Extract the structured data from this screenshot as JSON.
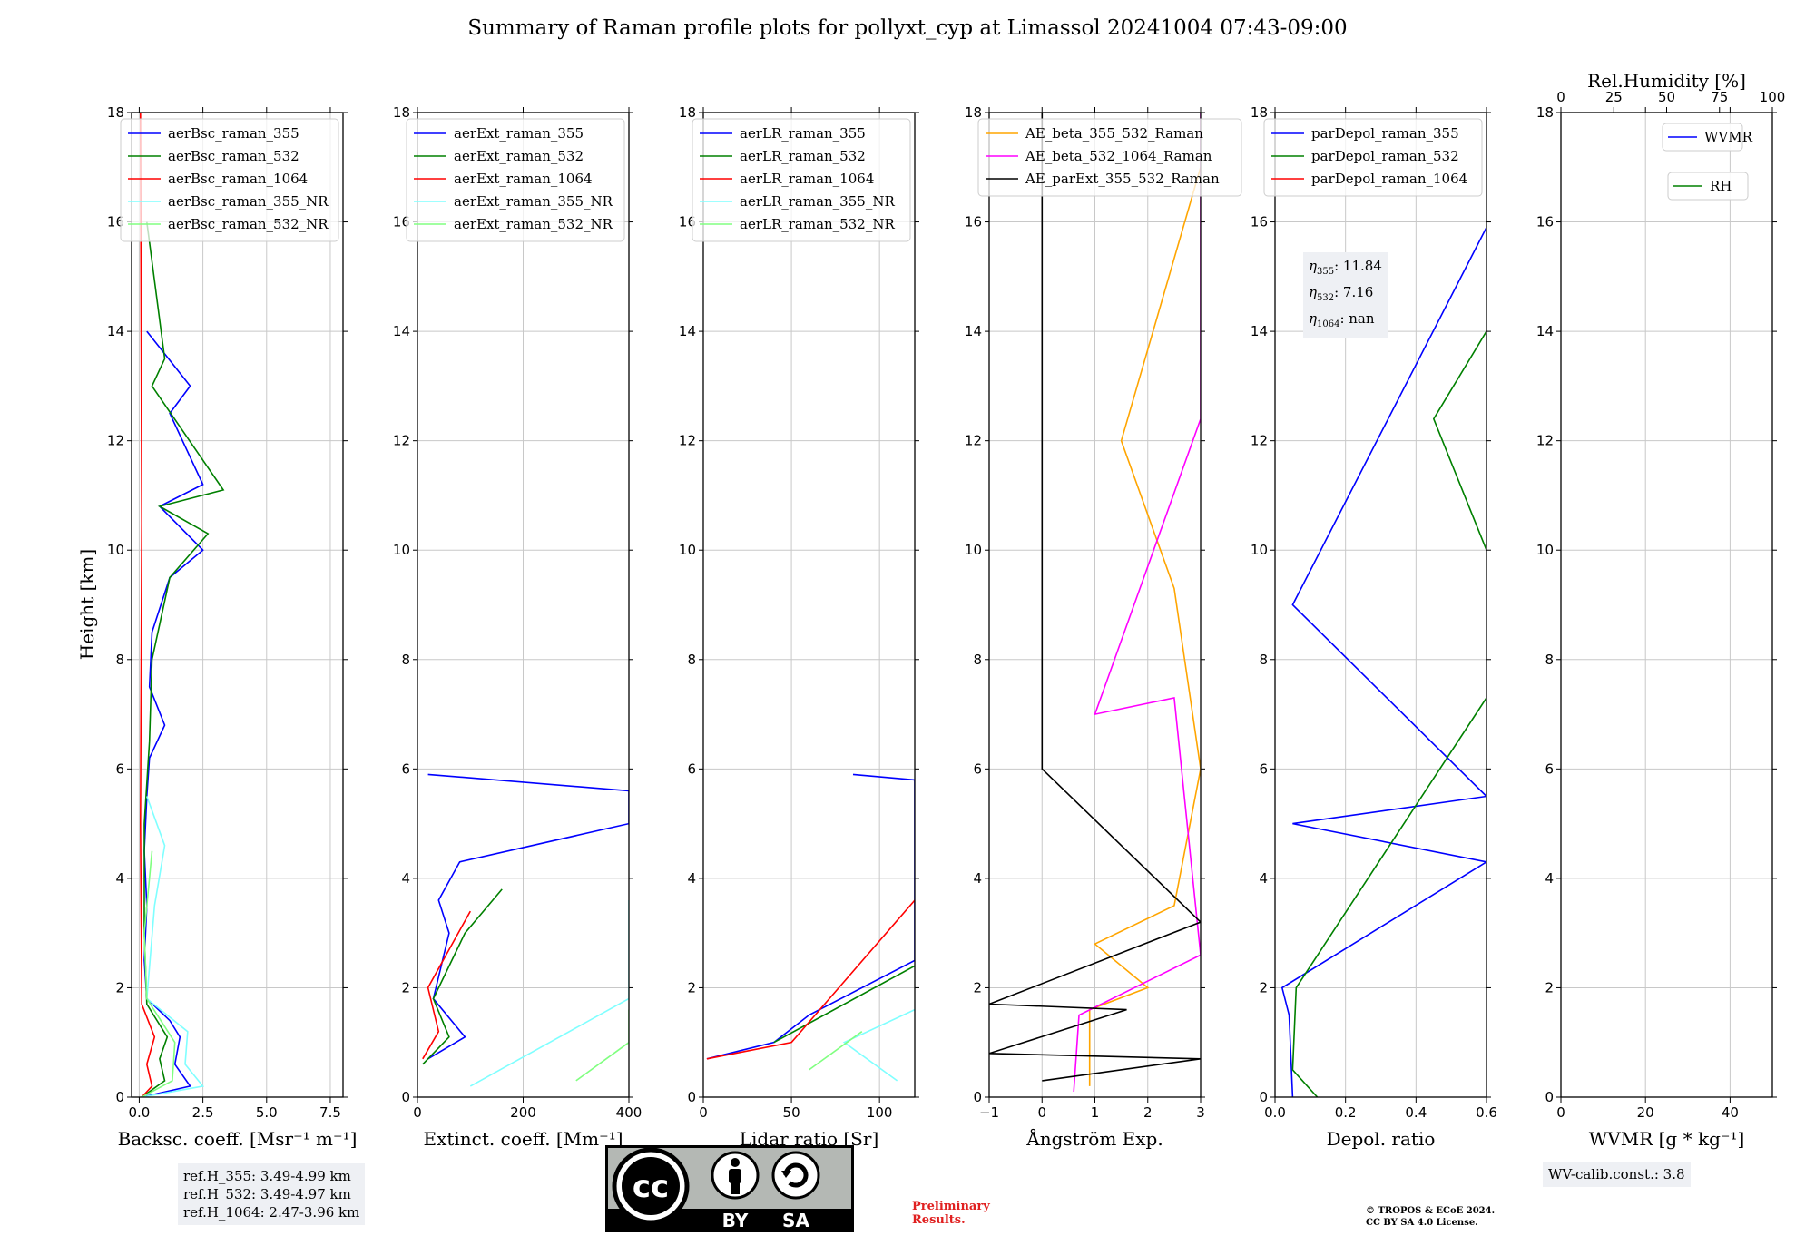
{
  "title": "Summary of Raman profile plots for pollyxt_cyp at Limassol 20241004 07:43-09:00",
  "panels": [
    {
      "id": "bsc",
      "xlabel": "Backsc. coeff. [Msr⁻¹ m⁻¹]",
      "xlim": [
        -0.3,
        8.0
      ],
      "ticks": [
        0,
        2.5,
        5.0,
        7.5
      ],
      "tick_labels": [
        "0.0",
        "2.5",
        "5.0",
        "7.5"
      ],
      "ylabel": "Height [km]",
      "legend": [
        "aerBsc_raman_355",
        "aerBsc_raman_532",
        "aerBsc_raman_1064",
        "aerBsc_raman_355_NR",
        "aerBsc_raman_532_NR"
      ]
    },
    {
      "id": "ext",
      "xlabel": "Extinct. coeff. [Mm⁻¹]",
      "xlim": [
        0,
        400
      ],
      "ticks": [
        0,
        200,
        400
      ],
      "tick_labels": [
        "0",
        "200",
        "400"
      ],
      "legend": [
        "aerExt_raman_355",
        "aerExt_raman_532",
        "aerExt_raman_1064",
        "aerExt_raman_355_NR",
        "aerExt_raman_532_NR"
      ]
    },
    {
      "id": "lr",
      "xlabel": "Lidar ratio [Sr]",
      "xlim": [
        0,
        120
      ],
      "ticks": [
        0,
        50,
        100
      ],
      "tick_labels": [
        "0",
        "50",
        "100"
      ],
      "legend": [
        "aerLR_raman_355",
        "aerLR_raman_532",
        "aerLR_raman_1064",
        "aerLR_raman_355_NR",
        "aerLR_raman_532_NR"
      ]
    },
    {
      "id": "ae",
      "xlabel": "Ångström Exp.",
      "xlim": [
        -1,
        3
      ],
      "ticks": [
        -1,
        0,
        1,
        2,
        3
      ],
      "tick_labels": [
        "−1",
        "0",
        "1",
        "2",
        "3"
      ],
      "legend": [
        "AE_beta_355_532_Raman",
        "AE_beta_532_1064_Raman",
        "AE_parExt_355_532_Raman"
      ]
    },
    {
      "id": "dep",
      "xlabel": "Depol. ratio",
      "xlim": [
        0,
        0.6
      ],
      "ticks": [
        0,
        0.2,
        0.4,
        0.6
      ],
      "tick_labels": [
        "0.0",
        "0.2",
        "0.4",
        "0.6"
      ],
      "legend": [
        "parDepol_raman_355",
        "parDepol_raman_532",
        "parDepol_raman_1064"
      ]
    },
    {
      "id": "wv",
      "xlabel": "WVMR [g * kg⁻¹]",
      "xlim": [
        0,
        50
      ],
      "ticks": [
        0,
        20,
        40
      ],
      "tick_labels": [
        "0",
        "20",
        "40"
      ],
      "top_label": "Rel.Humidity [%]",
      "top_ticks": [
        0,
        25,
        50,
        75,
        100
      ],
      "legend": [
        "WVMR",
        "RH"
      ]
    }
  ],
  "ylim": [
    0,
    18
  ],
  "yticks": [
    0,
    2,
    4,
    6,
    8,
    10,
    12,
    14,
    16,
    18
  ],
  "series_colors": {
    "s355": "#0000ff",
    "s532": "#008000",
    "s1064": "#ff0000",
    "s355nr": "#7fffff",
    "s532nr": "#80ff80",
    "ae1": "#ffa500",
    "ae2": "#ff00ff",
    "ae3": "#000000"
  },
  "chart_data": [
    {
      "type": "line",
      "title": "Backsc. coeff.",
      "series": [
        {
          "name": "aerBsc_raman_355",
          "points": [
            [
              0.1,
              0
            ],
            [
              2.0,
              0.2
            ],
            [
              1.4,
              0.6
            ],
            [
              1.6,
              1.1
            ],
            [
              1.2,
              1.4
            ],
            [
              0.3,
              1.8
            ],
            [
              0.2,
              2.5
            ],
            [
              0.3,
              3.5
            ],
            [
              0.2,
              4.5
            ],
            [
              0.3,
              5.5
            ],
            [
              0.4,
              6.2
            ],
            [
              1.0,
              6.8
            ],
            [
              0.4,
              7.5
            ],
            [
              0.5,
              8.5
            ],
            [
              1.2,
              9.5
            ],
            [
              2.5,
              10.0
            ],
            [
              0.8,
              10.8
            ],
            [
              2.5,
              11.2
            ],
            [
              1.2,
              12.5
            ],
            [
              2.0,
              13.0
            ],
            [
              0.3,
              14.0
            ]
          ]
        },
        {
          "name": "aerBsc_raman_532",
          "points": [
            [
              0.1,
              0
            ],
            [
              1.0,
              0.3
            ],
            [
              0.8,
              0.7
            ],
            [
              1.1,
              1.1
            ],
            [
              0.3,
              1.7
            ],
            [
              0.2,
              3
            ],
            [
              0.2,
              5
            ],
            [
              0.4,
              6.5
            ],
            [
              0.5,
              8.0
            ],
            [
              1.2,
              9.5
            ],
            [
              2.7,
              10.3
            ],
            [
              0.8,
              10.8
            ],
            [
              3.3,
              11.1
            ],
            [
              0.5,
              13.0
            ],
            [
              1.0,
              13.5
            ],
            [
              0.3,
              16.0
            ]
          ]
        },
        {
          "name": "aerBsc_raman_1064",
          "points": [
            [
              0.1,
              0
            ],
            [
              0.5,
              0.2
            ],
            [
              0.3,
              0.6
            ],
            [
              0.6,
              1.1
            ],
            [
              0.1,
              1.7
            ],
            [
              0.05,
              5
            ],
            [
              0.1,
              10.5
            ],
            [
              0.05,
              18
            ]
          ]
        },
        {
          "name": "aerBsc_raman_355_NR",
          "points": [
            [
              0.1,
              0
            ],
            [
              2.5,
              0.2
            ],
            [
              1.8,
              0.6
            ],
            [
              1.9,
              1.2
            ],
            [
              0.3,
              1.8
            ],
            [
              0.6,
              3.5
            ],
            [
              1.0,
              4.6
            ],
            [
              0.3,
              5.5
            ]
          ]
        },
        {
          "name": "aerBsc_raman_532_NR",
          "points": [
            [
              0.1,
              0
            ],
            [
              1.3,
              0.3
            ],
            [
              1.4,
              1.0
            ],
            [
              0.3,
              1.8
            ],
            [
              0.2,
              3
            ],
            [
              0.5,
              4.5
            ]
          ]
        }
      ]
    },
    {
      "type": "line",
      "title": "Extinct. coeff.",
      "series": [
        {
          "name": "aerExt_raman_355",
          "points": [
            [
              20,
              0.7
            ],
            [
              90,
              1.1
            ],
            [
              30,
              1.8
            ],
            [
              60,
              3.0
            ],
            [
              40,
              3.6
            ],
            [
              80,
              4.3
            ],
            [
              400,
              5.0
            ],
            [
              400,
              5.6
            ],
            [
              20,
              5.9
            ]
          ]
        },
        {
          "name": "aerExt_raman_532",
          "points": [
            [
              10,
              0.6
            ],
            [
              60,
              1.1
            ],
            [
              30,
              1.8
            ],
            [
              90,
              3.0
            ],
            [
              160,
              3.8
            ]
          ]
        },
        {
          "name": "aerExt_raman_1064",
          "points": [
            [
              10,
              0.7
            ],
            [
              40,
              1.2
            ],
            [
              20,
              2.0
            ],
            [
              100,
              3.4
            ]
          ]
        },
        {
          "name": "aerExt_raman_355_NR",
          "points": [
            [
              100,
              0.2
            ],
            [
              400,
              1.8
            ],
            [
              400,
              3.6
            ]
          ]
        },
        {
          "name": "aerExt_raman_532_NR",
          "points": [
            [
              300,
              0.3
            ],
            [
              400,
              1.0
            ],
            [
              400,
              1.6
            ]
          ]
        }
      ]
    },
    {
      "type": "line",
      "title": "Lidar ratio",
      "series": [
        {
          "name": "aerLR_raman_355",
          "points": [
            [
              2,
              0.7
            ],
            [
              40,
              1.0
            ],
            [
              60,
              1.5
            ],
            [
              120,
              2.5
            ],
            [
              120,
              5.8
            ],
            [
              85,
              5.9
            ]
          ]
        },
        {
          "name": "aerLR_raman_532",
          "points": [
            [
              40,
              1.0
            ],
            [
              120,
              2.4
            ]
          ]
        },
        {
          "name": "aerLR_raman_1064",
          "points": [
            [
              2,
              0.7
            ],
            [
              50,
              1.0
            ],
            [
              120,
              3.6
            ]
          ]
        },
        {
          "name": "aerLR_raman_355_NR",
          "points": [
            [
              110,
              0.3
            ],
            [
              80,
              1.0
            ],
            [
              120,
              1.6
            ]
          ]
        },
        {
          "name": "aerLR_raman_532_NR",
          "points": [
            [
              60,
              0.5
            ],
            [
              90,
              1.2
            ]
          ]
        }
      ]
    },
    {
      "type": "line",
      "title": "Ångström Exp.",
      "series": [
        {
          "name": "AE_beta_355_532_Raman",
          "points": [
            [
              0.9,
              0.2
            ],
            [
              0.9,
              1.6
            ],
            [
              2.0,
              2.0
            ],
            [
              1.0,
              2.8
            ],
            [
              2.5,
              3.5
            ],
            [
              3.0,
              6.0
            ],
            [
              2.5,
              9.3
            ],
            [
              1.5,
              12.0
            ],
            [
              3.0,
              17.0
            ]
          ]
        },
        {
          "name": "AE_beta_532_1064_Raman",
          "points": [
            [
              0.6,
              0.1
            ],
            [
              0.7,
              1.5
            ],
            [
              3.0,
              2.6
            ],
            [
              2.5,
              7.3
            ],
            [
              1.0,
              7.0
            ],
            [
              3.0,
              12.4
            ],
            [
              3.0,
              18.0
            ]
          ]
        },
        {
          "name": "AE_parExt_355_532_Raman",
          "points": [
            [
              0,
              0.3
            ],
            [
              3,
              0.7
            ],
            [
              -1,
              0.8
            ],
            [
              1.6,
              1.6
            ],
            [
              -1,
              1.7
            ],
            [
              3,
              3.2
            ],
            [
              0,
              6.0
            ],
            [
              0,
              18.0
            ]
          ]
        }
      ]
    },
    {
      "type": "line",
      "title": "Depol. ratio",
      "series": [
        {
          "name": "parDepol_raman_355",
          "points": [
            [
              0.05,
              0
            ],
            [
              0.04,
              1.5
            ],
            [
              0.02,
              2.0
            ],
            [
              0.6,
              4.3
            ],
            [
              0.05,
              5.0
            ],
            [
              0.6,
              5.5
            ],
            [
              0.05,
              9.0
            ],
            [
              0.6,
              15.9
            ]
          ]
        },
        {
          "name": "parDepol_raman_532",
          "points": [
            [
              0.12,
              0
            ],
            [
              0.05,
              0.5
            ],
            [
              0.06,
              2.0
            ],
            [
              0.6,
              7.3
            ],
            [
              0.6,
              10.0
            ],
            [
              0.45,
              12.4
            ],
            [
              0.6,
              14.0
            ]
          ]
        },
        {
          "name": "parDepol_raman_1064",
          "points": []
        }
      ]
    },
    {
      "type": "line",
      "title": "WVMR / RH",
      "series": [
        {
          "name": "WVMR",
          "points": []
        },
        {
          "name": "RH",
          "points": []
        }
      ]
    }
  ],
  "eta_box": {
    "l1": "η",
    "s1": "355",
    "v1": ": 11.84",
    "l2": "η",
    "s2": "532",
    "v2": ": 7.16",
    "l3": "η",
    "s3": "1064",
    "v3": ": nan"
  },
  "ref_box": [
    "ref.H_355: 3.49-4.99 km",
    "ref.H_532: 3.49-4.97 km",
    "ref.H_1064: 2.47-3.96 km"
  ],
  "wv_calib": "WV-calib.const.: 3.8",
  "license": {
    "cc": "cc",
    "by": "BY",
    "sa": "SA"
  },
  "prelim": [
    "Preliminary",
    "Results."
  ],
  "copyright": [
    "© TROPOS & ECoE 2024.",
    "CC BY SA 4.0 License."
  ]
}
